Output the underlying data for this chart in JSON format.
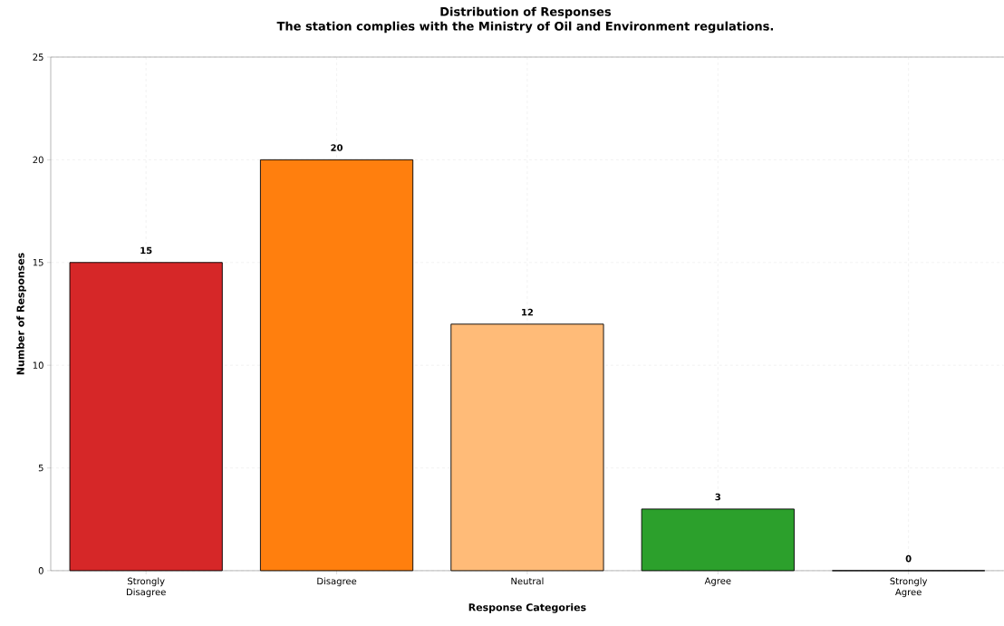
{
  "chart_data": {
    "type": "bar",
    "title": "Distribution of Responses",
    "subtitle": "The station complies with the Ministry of Oil and Environment regulations.",
    "xlabel": "Response Categories",
    "ylabel": "Number of Responses",
    "categories": [
      "Strongly Disagree",
      "Disagree",
      "Neutral",
      "Agree",
      "Strongly Agree"
    ],
    "values": [
      15,
      20,
      12,
      3,
      0
    ],
    "colors": [
      "#d62728",
      "#ff7f0e",
      "#ffbb78",
      "#2ca02c",
      "#98df8a"
    ],
    "ylim": [
      0,
      25
    ],
    "yticks": [
      0,
      5,
      10,
      15,
      20,
      25
    ],
    "grid": true,
    "data_labels": true
  }
}
